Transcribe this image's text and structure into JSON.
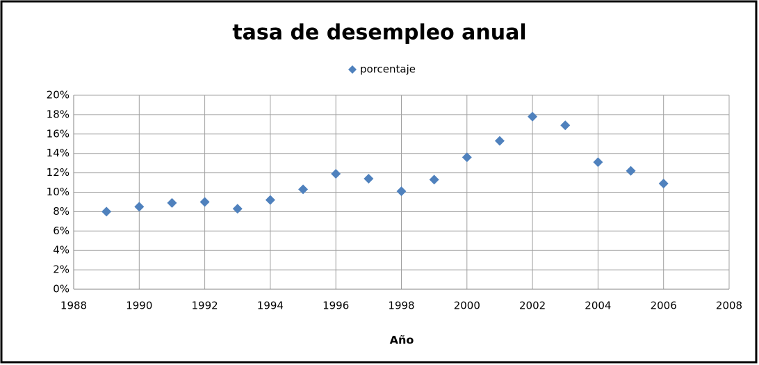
{
  "chart_data": {
    "type": "scatter",
    "title": "tasa de desempleo anual",
    "x_label": "Año",
    "series": [
      {
        "name": "porcentaje",
        "color": "#4f81bd",
        "x": [
          1989,
          1990,
          1991,
          1992,
          1993,
          1994,
          1995,
          1996,
          1997,
          1998,
          1999,
          2000,
          2001,
          2002,
          2003,
          2004,
          2005,
          2006
        ],
        "values": [
          8.0,
          8.5,
          8.9,
          9.0,
          8.3,
          9.2,
          10.3,
          11.9,
          11.4,
          10.1,
          11.3,
          13.6,
          15.3,
          17.8,
          16.9,
          13.1,
          12.2,
          10.9
        ]
      }
    ],
    "xlim": [
      1988,
      2008
    ],
    "xticks": [
      1988,
      1990,
      1992,
      1994,
      1996,
      1998,
      2000,
      2002,
      2004,
      2006,
      2008
    ],
    "ylim": [
      0,
      20
    ],
    "yticks": [
      {
        "value": 0,
        "label": "0%"
      },
      {
        "value": 2,
        "label": "2%"
      },
      {
        "value": 4,
        "label": "4%"
      },
      {
        "value": 6,
        "label": "6%"
      },
      {
        "value": 8,
        "label": "8%"
      },
      {
        "value": 10,
        "label": "10%"
      },
      {
        "value": 12,
        "label": "12%"
      },
      {
        "value": 14,
        "label": "14%"
      },
      {
        "value": 16,
        "label": "16%"
      },
      {
        "value": 18,
        "label": "18%"
      },
      {
        "value": 20,
        "label": "20%"
      }
    ],
    "grid": true,
    "legend": "top"
  }
}
